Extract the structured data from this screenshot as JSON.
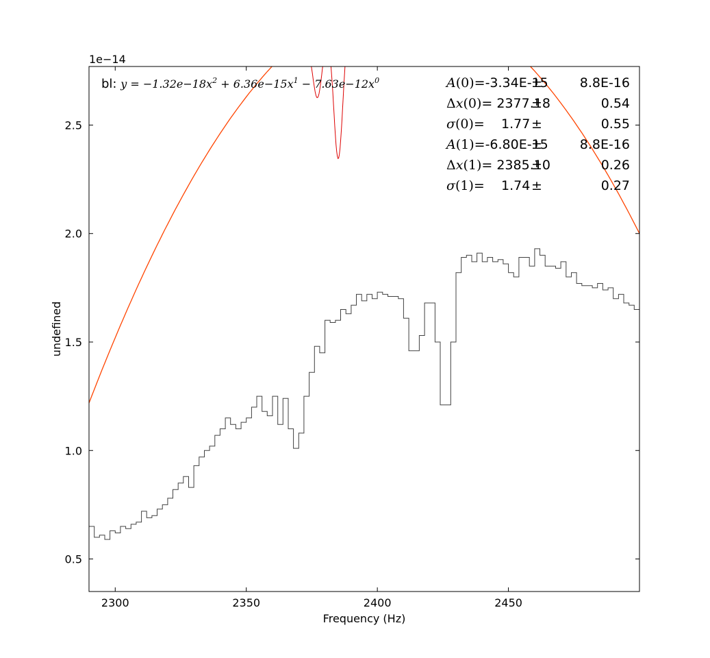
{
  "chart_data": {
    "type": "line",
    "xlabel": "Frequency (Hz)",
    "ylabel": "undefined",
    "offset_label": "1e−14",
    "xlim": [
      2290,
      2500
    ],
    "ylim": [
      0.35,
      2.77
    ],
    "xticks": [
      2300,
      2350,
      2400,
      2450
    ],
    "xtick_labels": [
      "2300",
      "2350",
      "2400",
      "2450"
    ],
    "yticks": [
      0.5,
      1.0,
      1.5,
      2.0,
      2.5
    ],
    "ytick_labels": [
      "0.5",
      "1.0",
      "1.5",
      "2.0",
      "2.5"
    ],
    "grid": false,
    "baseline": {
      "label_prefix": "bl: ",
      "equation": [
        {
          "t": "y",
          "cls": "it"
        },
        {
          "t": " = −1.32e−18",
          "cls": "it"
        },
        {
          "t": "x",
          "cls": "it"
        },
        {
          "t": "2",
          "cls": "sup"
        },
        {
          "t": " + 6.36e−15",
          "cls": "it"
        },
        {
          "t": "x",
          "cls": "it"
        },
        {
          "t": "1",
          "cls": "sup"
        },
        {
          "t": " − 7.63e−12",
          "cls": "it"
        },
        {
          "t": "x",
          "cls": "it"
        },
        {
          "t": "0",
          "cls": "sup"
        }
      ],
      "coefficients": [
        -1.32e-18,
        6.36e-15,
        -7.63e-12
      ]
    },
    "fit_params": [
      {
        "name_sym": "",
        "name_it": "A",
        "idx": "(0)",
        "value": "=-3.34E-15",
        "err": "8.8E-16"
      },
      {
        "name_sym": "Δ",
        "name_it": "x",
        "idx": "(0)",
        "value": "= 2377.18",
        "err": "0.54"
      },
      {
        "name_sym": "",
        "name_it": "σ",
        "idx": "(0)",
        "value": "=    1.77",
        "err": "0.55"
      },
      {
        "name_sym": "",
        "name_it": "A",
        "idx": "(1)",
        "value": "=-6.80E-15",
        "err": "8.8E-16"
      },
      {
        "name_sym": "Δ",
        "name_it": "x",
        "idx": "(1)",
        "value": "= 2385.10",
        "err": "0.26"
      },
      {
        "name_sym": "",
        "name_it": "σ",
        "idx": "(1)",
        "value": "=    1.74",
        "err": "0.27"
      }
    ],
    "pm_symbol": "±",
    "colors": {
      "data": "#404040",
      "baseline": "#ff4400",
      "baseline_highlight": "#ffaa33",
      "fit": "#dd0000"
    },
    "series": [
      {
        "kind": "step",
        "x": [
          2290,
          2292,
          2294,
          2296,
          2298,
          2300,
          2302,
          2304,
          2306,
          2308,
          2310,
          2312,
          2314,
          2316,
          2318,
          2320,
          2322,
          2324,
          2326,
          2328,
          2330,
          2332,
          2334,
          2336,
          2338,
          2340,
          2342,
          2344,
          2346,
          2348,
          2350,
          2352,
          2354,
          2356,
          2358,
          2360,
          2362,
          2364,
          2366,
          2368,
          2370,
          2372,
          2374,
          2376,
          2378,
          2380,
          2382,
          2384,
          2386,
          2388,
          2390,
          2392,
          2394,
          2396,
          2398,
          2400,
          2402,
          2404,
          2406,
          2408,
          2410,
          2412,
          2414,
          2416,
          2418,
          2420,
          2422,
          2424,
          2426,
          2428,
          2430,
          2432,
          2434,
          2436,
          2438,
          2440,
          2442,
          2444,
          2446,
          2448,
          2450,
          2452,
          2454,
          2456,
          2458,
          2460,
          2462,
          2464,
          2466,
          2468,
          2470,
          2472,
          2474,
          2476,
          2478,
          2480,
          2482,
          2484,
          2486,
          2488,
          2490,
          2492,
          2494,
          2496,
          2498
        ],
        "values": [
          0.65,
          0.6,
          0.61,
          0.59,
          0.63,
          0.62,
          0.65,
          0.64,
          0.66,
          0.67,
          0.72,
          0.69,
          0.7,
          0.73,
          0.75,
          0.78,
          0.82,
          0.85,
          0.88,
          0.83,
          0.93,
          0.97,
          1.0,
          1.02,
          1.07,
          1.1,
          1.15,
          1.12,
          1.1,
          1.13,
          1.15,
          1.2,
          1.25,
          1.18,
          1.16,
          1.25,
          1.12,
          1.24,
          1.1,
          1.01,
          1.08,
          1.25,
          1.36,
          1.48,
          1.45,
          1.6,
          1.59,
          1.6,
          1.65,
          1.63,
          1.67,
          1.72,
          1.69,
          1.72,
          1.7,
          1.73,
          1.72,
          1.71,
          1.71,
          1.7,
          1.61,
          1.46,
          1.46,
          1.53,
          1.68,
          1.68,
          1.5,
          1.21,
          1.21,
          1.5,
          1.82,
          1.89,
          1.9,
          1.87,
          1.91,
          1.87,
          1.89,
          1.87,
          1.88,
          1.86,
          1.82,
          1.8,
          1.89,
          1.89,
          1.85,
          1.93,
          1.9,
          1.85,
          1.85,
          1.84,
          1.87,
          1.8,
          1.82,
          1.77,
          1.76,
          1.76,
          1.75,
          1.77,
          1.74,
          1.75,
          1.7,
          1.72,
          1.68,
          1.67,
          1.65
        ]
      }
    ]
  }
}
